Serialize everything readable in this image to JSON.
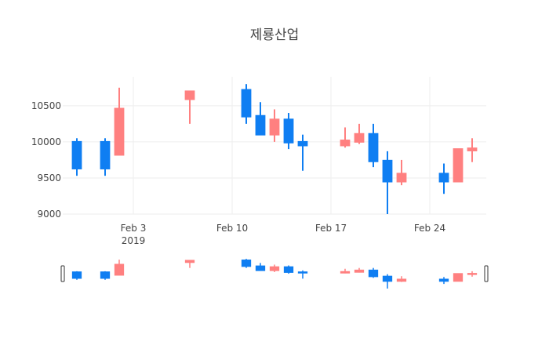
{
  "chart_data": {
    "type": "candlestick",
    "title": "제룡산업",
    "colors": {
      "increasing": "#ff8080",
      "decreasing": "#0f7ef2"
    },
    "x_axis": {
      "tick_labels": [
        "Feb 3",
        "Feb 10",
        "Feb 17",
        "Feb 24"
      ],
      "year_label": "2019",
      "range": [
        "2019-01-29",
        "2019-02-28"
      ]
    },
    "y_axis": {
      "range": [
        9000,
        10900
      ],
      "ticks": [
        9000,
        9500,
        10000,
        10500
      ],
      "tick_labels": [
        "9000",
        "9500",
        "10000",
        "10500"
      ]
    },
    "grid": true,
    "rangeslider": true,
    "candles": [
      {
        "date": "2019-01-30",
        "open": 10000,
        "high": 10050,
        "low": 9530,
        "close": 9630
      },
      {
        "date": "2019-02-01",
        "open": 10000,
        "high": 10050,
        "low": 9530,
        "close": 9630
      },
      {
        "date": "2019-02-02",
        "open": 9820,
        "high": 10750,
        "low": 9820,
        "close": 10460
      },
      {
        "date": "2019-02-07",
        "open": 10590,
        "high": 10700,
        "low": 10250,
        "close": 10700
      },
      {
        "date": "2019-02-11",
        "open": 10720,
        "high": 10800,
        "low": 10250,
        "close": 10350
      },
      {
        "date": "2019-02-12",
        "open": 10360,
        "high": 10550,
        "low": 10100,
        "close": 10100
      },
      {
        "date": "2019-02-13",
        "open": 10100,
        "high": 10450,
        "low": 10000,
        "close": 10310
      },
      {
        "date": "2019-02-14",
        "open": 10310,
        "high": 10400,
        "low": 9900,
        "close": 9990
      },
      {
        "date": "2019-02-15",
        "open": 10000,
        "high": 10100,
        "low": 9600,
        "close": 9950
      },
      {
        "date": "2019-02-18",
        "open": 9950,
        "high": 10200,
        "low": 9920,
        "close": 10020
      },
      {
        "date": "2019-02-19",
        "open": 10000,
        "high": 10250,
        "low": 9970,
        "close": 10110
      },
      {
        "date": "2019-02-20",
        "open": 10110,
        "high": 10250,
        "low": 9650,
        "close": 9730
      },
      {
        "date": "2019-02-21",
        "open": 9740,
        "high": 9870,
        "low": 9000,
        "close": 9450
      },
      {
        "date": "2019-02-22",
        "open": 9450,
        "high": 9750,
        "low": 9400,
        "close": 9560
      },
      {
        "date": "2019-02-25",
        "open": 9560,
        "high": 9700,
        "low": 9280,
        "close": 9450
      },
      {
        "date": "2019-02-26",
        "open": 9450,
        "high": 9900,
        "low": 9450,
        "close": 9900
      },
      {
        "date": "2019-02-27",
        "open": 9880,
        "high": 10050,
        "low": 9720,
        "close": 9910
      }
    ]
  }
}
